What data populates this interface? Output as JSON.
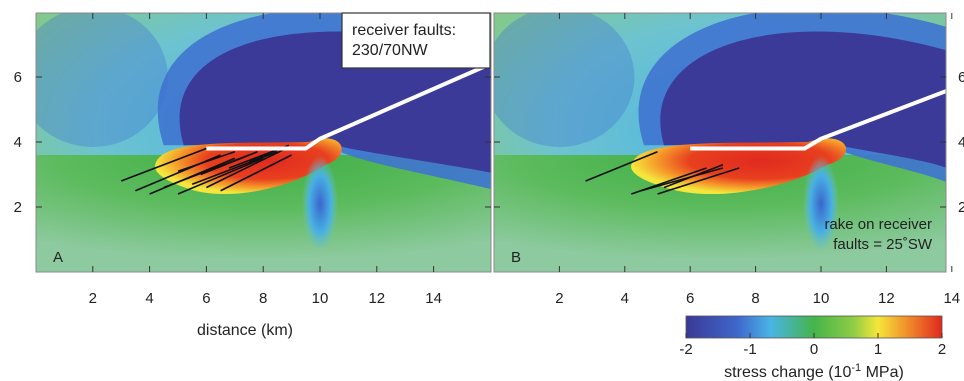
{
  "chart_data": {
    "type": "heatmap",
    "panels": [
      {
        "label": "A",
        "x_ticks": [
          "2",
          "4",
          "6",
          "8",
          "10",
          "12",
          "14"
        ],
        "y_ticks": [
          "2",
          "4",
          "6"
        ],
        "xlim": [
          0,
          16
        ],
        "ylim": [
          0,
          7.5
        ],
        "xlabel": "distance (km)",
        "annotation": [
          "receiver faults:",
          "230/70NW"
        ],
        "main_fault": [
          [
            6,
            3.8
          ],
          [
            9.5,
            3.8
          ],
          [
            10,
            4.1
          ],
          [
            16,
            6.4
          ]
        ],
        "aftershock_faults": [
          [
            [
              3,
              2.8
            ],
            [
              6,
              3.8
            ]
          ],
          [
            [
              3.5,
              2.5
            ],
            [
              6.5,
              3.6
            ]
          ],
          [
            [
              4,
              2.4
            ],
            [
              7,
              3.5
            ]
          ],
          [
            [
              4.5,
              2.6
            ],
            [
              7.5,
              3.6
            ]
          ],
          [
            [
              5,
              2.4
            ],
            [
              8,
              3.5
            ]
          ],
          [
            [
              5.5,
              2.7
            ],
            [
              8.5,
              3.7
            ]
          ],
          [
            [
              6,
              2.6
            ],
            [
              8.8,
              3.8
            ]
          ],
          [
            [
              6.5,
              2.5
            ],
            [
              9,
              3.6
            ]
          ],
          [
            [
              5,
              3.1
            ],
            [
              7,
              3.7
            ]
          ],
          [
            [
              6.8,
              3.2
            ],
            [
              8.6,
              3.8
            ]
          ],
          [
            [
              7.5,
              3.4
            ],
            [
              8.9,
              3.9
            ]
          ],
          [
            [
              5.8,
              3.0
            ],
            [
              7.8,
              3.7
            ]
          ]
        ]
      },
      {
        "label": "B",
        "x_ticks": [
          "2",
          "4",
          "6",
          "8",
          "10",
          "12",
          "14"
        ],
        "y_ticks": [
          "2",
          "4",
          "6"
        ],
        "xlim": [
          0,
          16
        ],
        "ylim": [
          0,
          7.5
        ],
        "annotation": [
          "rake on receiver",
          "faults = 25˚SW"
        ],
        "main_fault": [
          [
            6,
            3.8
          ],
          [
            9.5,
            3.8
          ],
          [
            10,
            4.1
          ],
          [
            16,
            6.4
          ]
        ],
        "aftershock_faults": [
          [
            [
              2.8,
              2.8
            ],
            [
              5,
              3.7
            ]
          ],
          [
            [
              4.2,
              2.4
            ],
            [
              6.5,
              3.2
            ]
          ],
          [
            [
              4.5,
              2.5
            ],
            [
              7,
              3.2
            ]
          ],
          [
            [
              5,
              2.4
            ],
            [
              7.5,
              3.2
            ]
          ],
          [
            [
              5.2,
              2.6
            ],
            [
              7,
              3.3
            ]
          ]
        ]
      }
    ],
    "colorbar": {
      "ticks": [
        "-2",
        "-1",
        "0",
        "1",
        "2"
      ],
      "range": [
        -2,
        2
      ],
      "label": "stress change (10",
      "label_exponent": "-1",
      "label_suffix": " MPa)",
      "colors": [
        "#3b3a97",
        "#3f6ed0",
        "#46b6e8",
        "#4bb84a",
        "#6cc24a",
        "#f5e63a",
        "#f08a2a",
        "#e0281f"
      ]
    }
  }
}
